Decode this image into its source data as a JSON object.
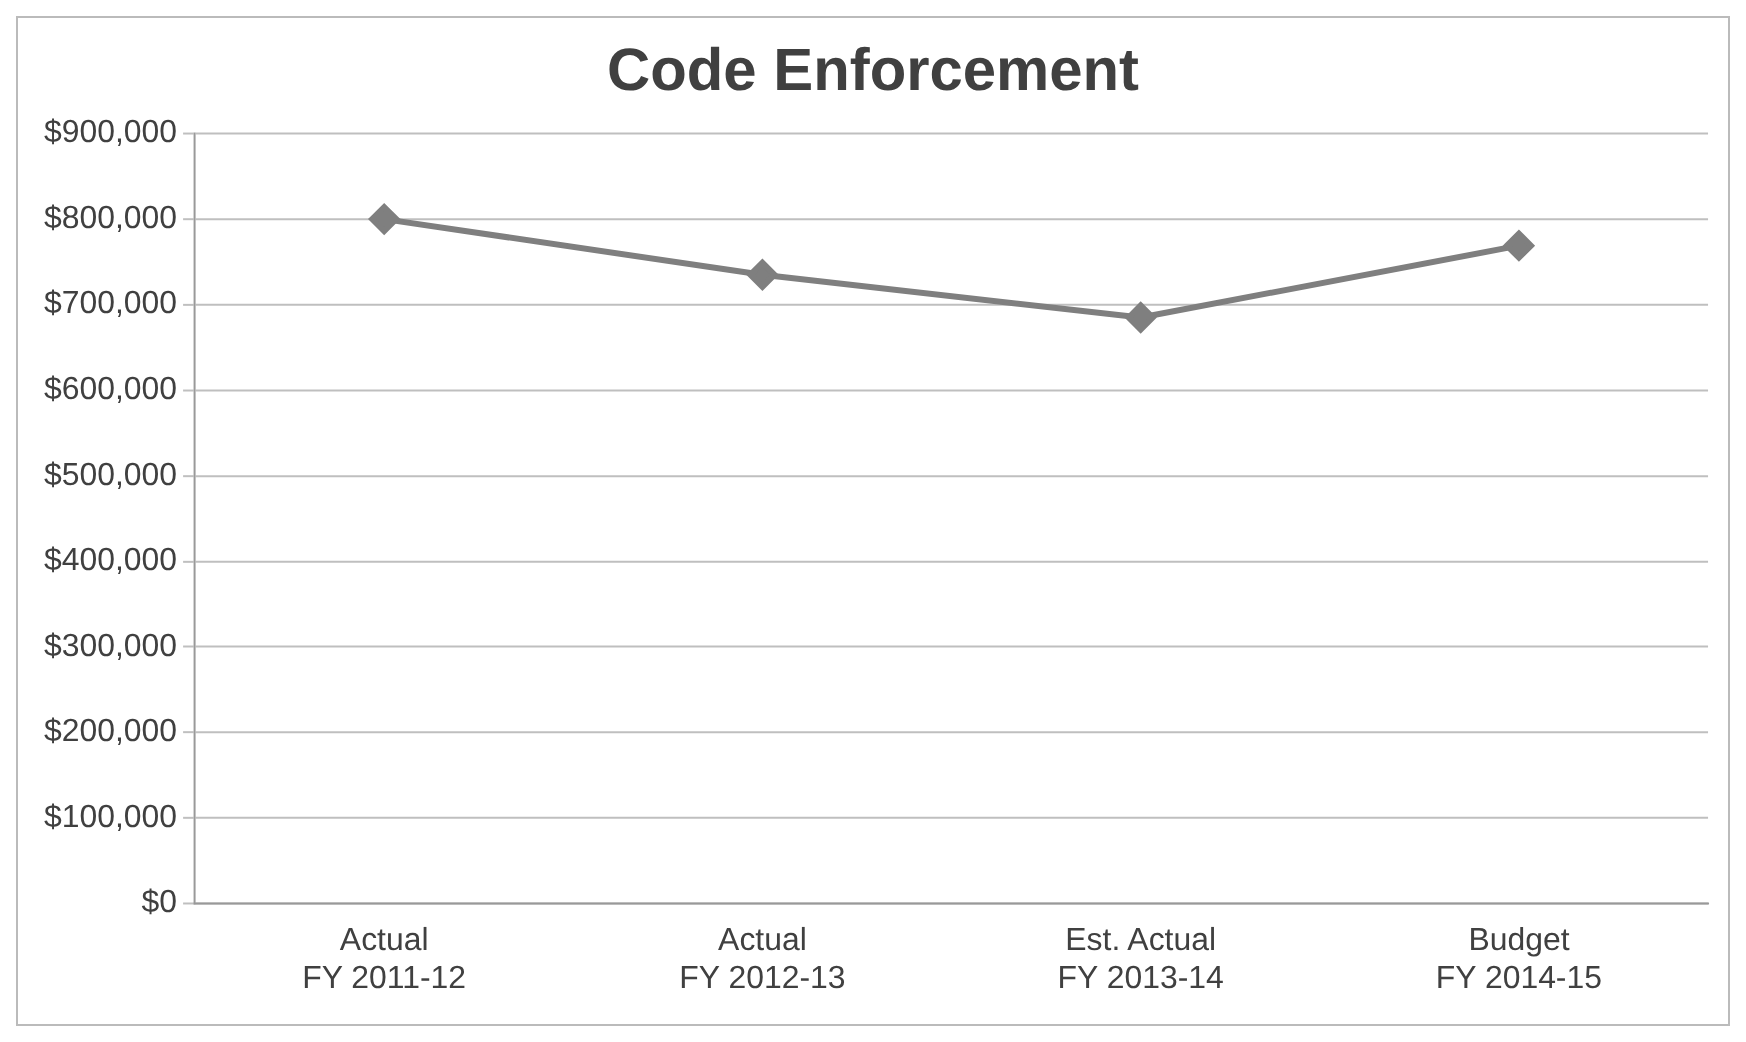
{
  "chart_data": {
    "type": "line",
    "title": "Code Enforcement",
    "categories": [
      "Actual\nFY 2011-12",
      "Actual\nFY 2012-13",
      "Est. Actual\nFY 2013-14",
      "Budget\nFY 2014-15"
    ],
    "series": [
      {
        "color": "#7f7f7f",
        "values": [
          800000,
          735000,
          685000,
          769000
        ]
      }
    ],
    "ylim": [
      0,
      900000
    ],
    "yticks": [
      {
        "value": 0,
        "label": "$0"
      },
      {
        "value": 100000,
        "label": "$100,000"
      },
      {
        "value": 200000,
        "label": "$200,000"
      },
      {
        "value": 300000,
        "label": "$300,000"
      },
      {
        "value": 400000,
        "label": "$400,000"
      },
      {
        "value": 500000,
        "label": "$500,000"
      },
      {
        "value": 600000,
        "label": "$600,000"
      },
      {
        "value": 700000,
        "label": "$700,000"
      },
      {
        "value": 800000,
        "label": "$800,000"
      },
      {
        "value": 900000,
        "label": "$900,000"
      }
    ],
    "grid": "y",
    "legend": false,
    "marker": "diamond",
    "line_style": "solid"
  }
}
